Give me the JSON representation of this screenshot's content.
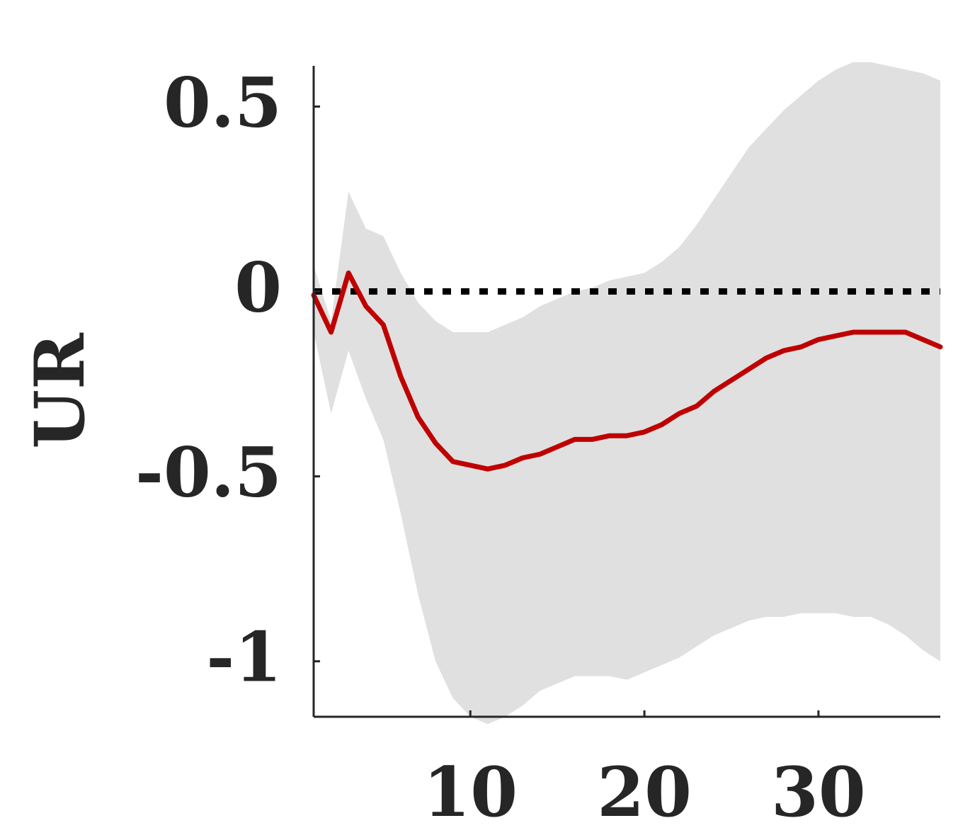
{
  "chart_data": {
    "type": "line",
    "ylabel": "UR",
    "xlabel": "",
    "xlim": [
      1,
      37
    ],
    "ylim": [
      -1.15,
      0.61
    ],
    "xticks": [
      {
        "value": 10,
        "label": "10"
      },
      {
        "value": 20,
        "label": "20"
      },
      {
        "value": 30,
        "label": "30"
      }
    ],
    "yticks": [
      {
        "value": 0.5,
        "label": "0.5"
      },
      {
        "value": 0,
        "label": "0"
      },
      {
        "value": -0.5,
        "label": "-0.5"
      },
      {
        "value": -1,
        "label": "-1"
      }
    ],
    "zero_line": {
      "y": 0,
      "style": "dotted",
      "color": "#000000"
    },
    "series": [
      {
        "color": "#bf0000",
        "x": [
          1,
          2,
          3,
          4,
          5,
          6,
          7,
          8,
          9,
          10,
          11,
          12,
          13,
          14,
          15,
          16,
          17,
          18,
          19,
          20,
          21,
          22,
          23,
          24,
          25,
          26,
          27,
          28,
          29,
          30,
          31,
          32,
          33,
          34,
          35,
          36,
          37
        ],
        "y": [
          -0.01,
          -0.11,
          0.05,
          -0.04,
          -0.09,
          -0.23,
          -0.34,
          -0.41,
          -0.46,
          -0.47,
          -0.48,
          -0.47,
          -0.45,
          -0.44,
          -0.42,
          -0.4,
          -0.4,
          -0.39,
          -0.39,
          -0.38,
          -0.36,
          -0.33,
          -0.31,
          -0.27,
          -0.24,
          -0.21,
          -0.18,
          -0.16,
          -0.15,
          -0.13,
          -0.12,
          -0.11,
          -0.11,
          -0.11,
          -0.11,
          -0.13,
          -0.15
        ]
      }
    ],
    "band": {
      "color": "#e0e0e0",
      "x": [
        1,
        2,
        3,
        4,
        5,
        6,
        7,
        8,
        9,
        10,
        11,
        12,
        13,
        14,
        15,
        16,
        17,
        18,
        19,
        20,
        21,
        22,
        23,
        24,
        25,
        26,
        27,
        28,
        29,
        30,
        31,
        32,
        33,
        34,
        35,
        36,
        37
      ],
      "upper": [
        0.07,
        -0.08,
        0.27,
        0.17,
        0.15,
        0.05,
        -0.03,
        -0.08,
        -0.11,
        -0.11,
        -0.11,
        -0.09,
        -0.07,
        -0.04,
        -0.02,
        0,
        0.01,
        0.03,
        0.04,
        0.05,
        0.08,
        0.12,
        0.18,
        0.25,
        0.32,
        0.39,
        0.44,
        0.49,
        0.53,
        0.57,
        0.6,
        0.62,
        0.62,
        0.61,
        0.6,
        0.59,
        0.57
      ],
      "lower": [
        -0.11,
        -0.33,
        -0.16,
        -0.29,
        -0.4,
        -0.6,
        -0.82,
        -1.0,
        -1.1,
        -1.15,
        -1.17,
        -1.15,
        -1.12,
        -1.08,
        -1.06,
        -1.04,
        -1.04,
        -1.04,
        -1.05,
        -1.03,
        -1.01,
        -0.99,
        -0.96,
        -0.93,
        -0.91,
        -0.89,
        -0.88,
        -0.88,
        -0.87,
        -0.87,
        -0.87,
        -0.88,
        -0.88,
        -0.9,
        -0.93,
        -0.97,
        -1.0
      ]
    }
  }
}
